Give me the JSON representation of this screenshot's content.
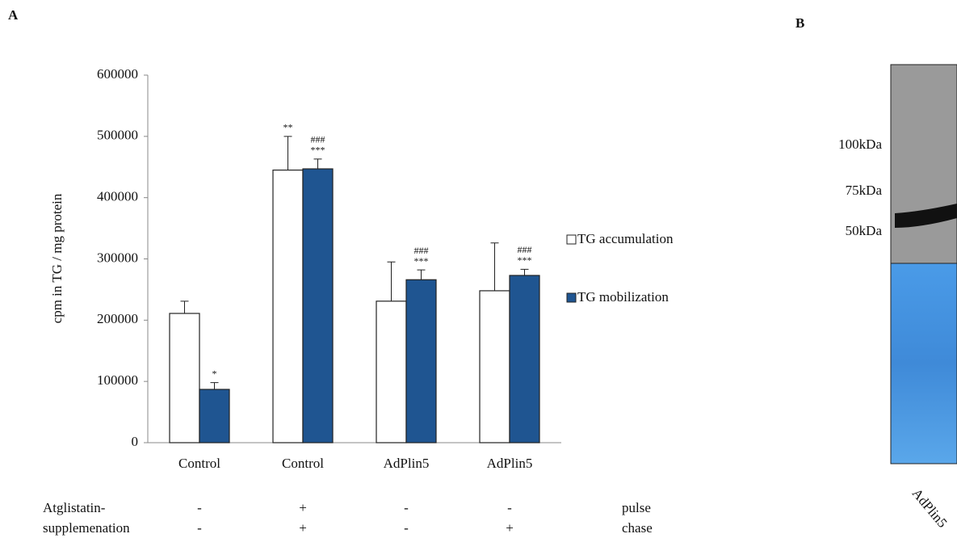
{
  "chart_data": {
    "type": "bar",
    "panel_label": "A",
    "y_label": "cpm in TG / mg protein",
    "categories": [
      "Control",
      "Control",
      "AdPlin5",
      "AdPlin5"
    ],
    "series": [
      {
        "name": "TG accumulation",
        "color": "#ffffff",
        "values": [
          211000,
          445000,
          231000,
          248000
        ],
        "errors": [
          20000,
          55000,
          64000,
          78000
        ],
        "annotations": [
          null,
          [
            "**"
          ],
          null,
          null
        ]
      },
      {
        "name": "TG mobilization",
        "color": "#1f5591",
        "values": [
          87000,
          447000,
          266000,
          273000
        ],
        "errors": [
          11000,
          16000,
          16000,
          10000
        ],
        "annotations": [
          [
            "*"
          ],
          [
            "###",
            "***"
          ],
          [
            "###",
            "***"
          ],
          [
            "###",
            "***"
          ]
        ]
      }
    ],
    "ylim": [
      0,
      600000
    ],
    "yticks": [
      0,
      100000,
      200000,
      300000,
      400000,
      500000,
      600000
    ],
    "legend": "right",
    "treatment_rows": [
      {
        "label": "Atglistatin-",
        "values": [
          "-",
          "+",
          "-",
          "-"
        ],
        "phase": "pulse"
      },
      {
        "label": "supplemenation",
        "values": [
          "-",
          "+",
          "-",
          "+"
        ],
        "phase": "chase"
      }
    ]
  },
  "panel_b": {
    "panel_label": "B",
    "markers": [
      "100kDa",
      "75kDa",
      "50kDa"
    ],
    "lane": "AdPlin5"
  }
}
